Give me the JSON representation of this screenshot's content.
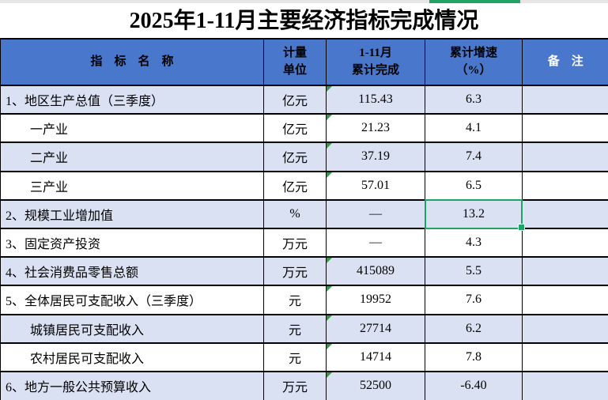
{
  "title": "2025年1-11月主要经济指标完成情况",
  "table": {
    "headers": [
      "指　标　名　称",
      "计量\n单位",
      "1-11月\n累计完成",
      "累计增速\n（%）",
      "备　注"
    ],
    "rows": [
      {
        "name": "1、地区生产总值（三季度）",
        "unit": "亿元",
        "value": "115.43",
        "growth": "6.3",
        "note": "",
        "indent": false,
        "text_flag": true
      },
      {
        "name": "一产业",
        "unit": "亿元",
        "value": "21.23",
        "growth": "4.1",
        "note": "",
        "indent": true,
        "text_flag": true
      },
      {
        "name": "二产业",
        "unit": "亿元",
        "value": "37.19",
        "growth": "7.4",
        "note": "",
        "indent": true,
        "text_flag": true
      },
      {
        "name": "三产业",
        "unit": "亿元",
        "value": "57.01",
        "growth": "6.5",
        "note": "",
        "indent": true,
        "text_flag": true
      },
      {
        "name": "2、规模工业增加值",
        "unit": "%",
        "value": "—",
        "growth": "13.2",
        "note": "",
        "indent": false,
        "text_flag": false
      },
      {
        "name": "3、固定资产投资",
        "unit": "万元",
        "value": "—",
        "growth": "4.3",
        "note": "",
        "indent": false,
        "text_flag": false
      },
      {
        "name": "4、社会消费品零售总额",
        "unit": "万元",
        "value": "415089",
        "growth": "5.5",
        "note": "",
        "indent": false,
        "text_flag": true
      },
      {
        "name": "5、全体居民可支配收入（三季度）",
        "unit": "元",
        "value": "19952",
        "growth": "7.6",
        "note": "",
        "indent": false,
        "text_flag": true
      },
      {
        "name": "城镇居民可支配收入",
        "unit": "元",
        "value": "27714",
        "growth": "6.2",
        "note": "",
        "indent": true,
        "text_flag": true
      },
      {
        "name": "农村居民可支配收入",
        "unit": "元",
        "value": "14714",
        "growth": "7.8",
        "note": "",
        "indent": true,
        "text_flag": true
      },
      {
        "name": "6、地方一般公共预算收入",
        "unit": "万元",
        "value": "52500",
        "growth": "-6.40",
        "note": "",
        "indent": false,
        "text_flag": true
      }
    ]
  },
  "selection": {
    "row_index": 4,
    "column": "growth",
    "value": "13.2"
  },
  "colors": {
    "header_bg": "#4977CB",
    "banded_row_bg": "#D9E1F2",
    "plain_row_bg": "#FFFFFF",
    "selection_green": "#21A366",
    "flag_triangle_green": "#2E9D44",
    "edge_strip_gray": "#E7E6E6",
    "grid_border": "#000000",
    "header_text": "#000000",
    "remarks_header_text": "#FFFFFF"
  }
}
